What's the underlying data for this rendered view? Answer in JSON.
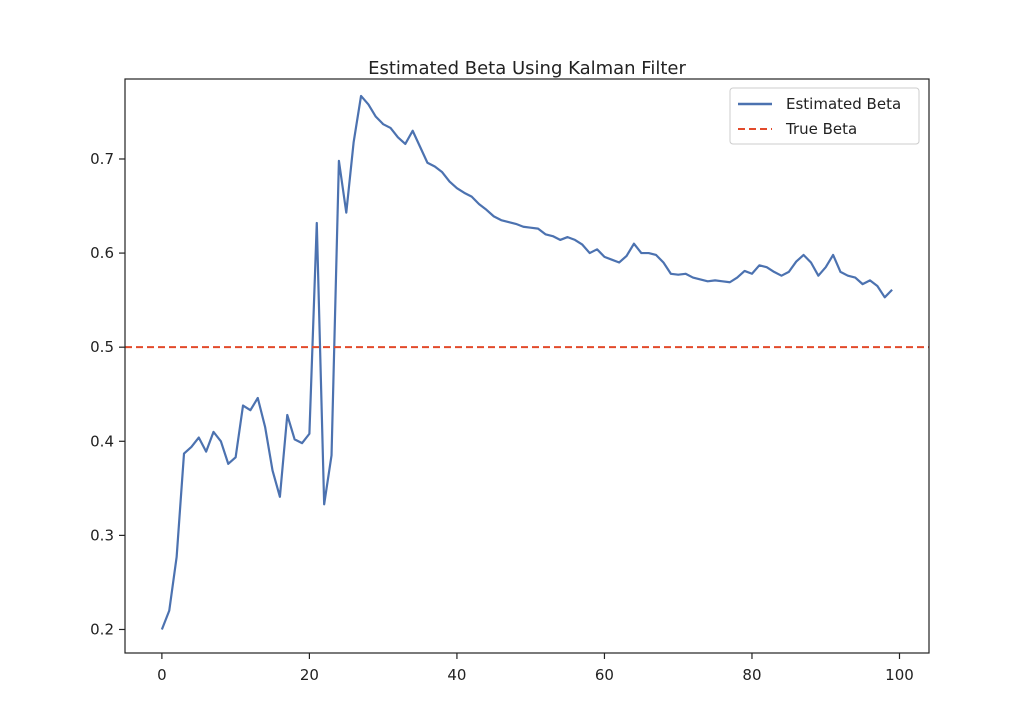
{
  "chart_data": {
    "type": "line",
    "title": "Estimated Beta Using Kalman Filter",
    "xlabel": "",
    "ylabel": "",
    "xlim": [
      -5,
      104
    ],
    "ylim": [
      0.175,
      0.785
    ],
    "x_ticks": [
      0,
      20,
      40,
      60,
      80,
      100
    ],
    "x_tick_labels": [
      "0",
      "20",
      "40",
      "60",
      "80",
      "100"
    ],
    "y_ticks": [
      0.2,
      0.3,
      0.4,
      0.5,
      0.6,
      0.7
    ],
    "y_tick_labels": [
      "0.2",
      "0.3",
      "0.4",
      "0.5",
      "0.6",
      "0.7"
    ],
    "grid": false,
    "legend_position": "top-right",
    "series": [
      {
        "name": "Estimated Beta",
        "color": "#4c72b0",
        "line_style": "solid",
        "x": [
          0,
          1,
          2,
          3,
          4,
          5,
          6,
          7,
          8,
          9,
          10,
          11,
          12,
          13,
          14,
          15,
          16,
          17,
          18,
          19,
          20,
          21,
          22,
          23,
          24,
          25,
          26,
          27,
          28,
          29,
          30,
          31,
          32,
          33,
          34,
          35,
          36,
          37,
          38,
          39,
          40,
          41,
          42,
          43,
          44,
          45,
          46,
          47,
          48,
          49,
          50,
          51,
          52,
          53,
          54,
          55,
          56,
          57,
          58,
          59,
          60,
          61,
          62,
          63,
          64,
          65,
          66,
          67,
          68,
          69,
          70,
          71,
          72,
          73,
          74,
          75,
          76,
          77,
          78,
          79,
          80,
          81,
          82,
          83,
          84,
          85,
          86,
          87,
          88,
          89,
          90,
          91,
          92,
          93,
          94,
          95,
          96,
          97,
          98,
          99
        ],
        "values": [
          0.2,
          0.22,
          0.277,
          0.387,
          0.394,
          0.404,
          0.389,
          0.41,
          0.4,
          0.376,
          0.383,
          0.438,
          0.433,
          0.446,
          0.415,
          0.369,
          0.341,
          0.428,
          0.402,
          0.398,
          0.408,
          0.632,
          0.333,
          0.385,
          0.698,
          0.643,
          0.718,
          0.767,
          0.758,
          0.745,
          0.737,
          0.733,
          0.723,
          0.716,
          0.73,
          0.713,
          0.696,
          0.692,
          0.686,
          0.676,
          0.669,
          0.664,
          0.66,
          0.652,
          0.646,
          0.639,
          0.635,
          0.633,
          0.631,
          0.628,
          0.627,
          0.626,
          0.62,
          0.618,
          0.614,
          0.617,
          0.614,
          0.609,
          0.6,
          0.604,
          0.596,
          0.593,
          0.59,
          0.597,
          0.61,
          0.6,
          0.6,
          0.598,
          0.59,
          0.578,
          0.577,
          0.578,
          0.574,
          0.572,
          0.57,
          0.571,
          0.57,
          0.569,
          0.574,
          0.581,
          0.578,
          0.587,
          0.585,
          0.58,
          0.576,
          0.58,
          0.591,
          0.598,
          0.59,
          0.576,
          0.585,
          0.598,
          0.58,
          0.576,
          0.574,
          0.567,
          0.571,
          0.565,
          0.553,
          0.561
        ]
      },
      {
        "name": "True Beta",
        "color": "#e24a2b",
        "line_style": "dashed",
        "constant": 0.5
      }
    ]
  }
}
